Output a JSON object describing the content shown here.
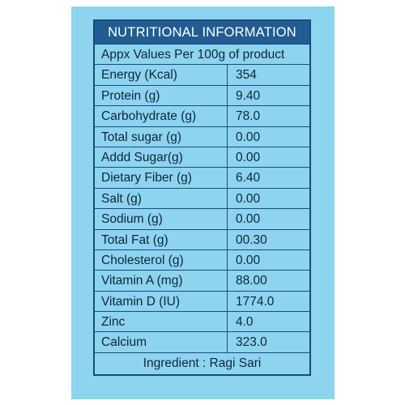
{
  "label": {
    "title": "NUTRITIONAL INFORMATION",
    "subtitle": "Appx Values Per 100g of product",
    "rows": [
      {
        "name": "Energy (Kcal)",
        "value": "354"
      },
      {
        "name": "Protein (g)",
        "value": "9.40"
      },
      {
        "name": "Carbohydrate (g)",
        "value": "78.0"
      },
      {
        "name": "Total sugar (g)",
        "value": "0.00"
      },
      {
        "name": "Addd Sugar(g)",
        "value": "0.00"
      },
      {
        "name": "Dietary Fiber (g)",
        "value": "6.40"
      },
      {
        "name": "Salt (g)",
        "value": "0.00"
      },
      {
        "name": "Sodium (g)",
        "value": "0.00"
      },
      {
        "name": "Total Fat (g)",
        "value": "00.30"
      },
      {
        "name": "Cholesterol (g)",
        "value": "0.00"
      },
      {
        "name": "Vitamin A (mg)",
        "value": "88.00"
      },
      {
        "name": "Vitamin D (IU)",
        "value": "1774.0"
      },
      {
        "name": "Zinc",
        "value": "4.0"
      },
      {
        "name": "Calcium",
        "value": "323.0"
      }
    ],
    "footer": "Ingredient : Ragi Sari"
  },
  "colors": {
    "background": "#8dd4ee",
    "header": "#215c93",
    "border": "#1b4a80"
  }
}
